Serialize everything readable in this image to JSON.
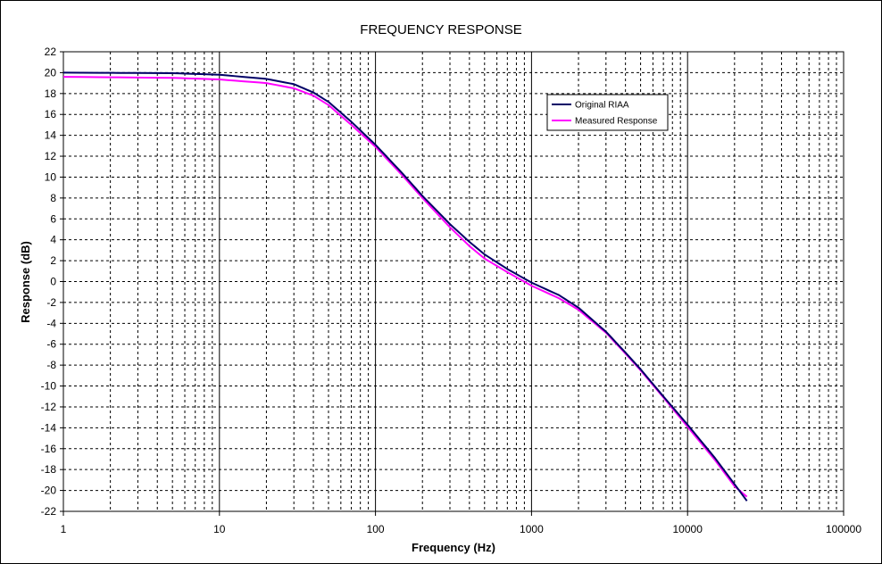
{
  "chart_data": {
    "type": "line",
    "title": "FREQUENCY RESPONSE",
    "xlabel": "Frequency (Hz)",
    "ylabel": "Response (dB)",
    "x_scale": "log",
    "xlim": [
      1,
      100000
    ],
    "ylim": [
      -22,
      22
    ],
    "x_ticks": [
      1,
      10,
      100,
      1000,
      10000,
      100000
    ],
    "x_tick_labels": [
      "1",
      "10",
      "100",
      "1000",
      "10000",
      "100000"
    ],
    "y_ticks": [
      22,
      20,
      18,
      16,
      14,
      12,
      10,
      8,
      6,
      4,
      2,
      0,
      -2,
      -4,
      -6,
      -8,
      -10,
      -12,
      -14,
      -16,
      -18,
      -20,
      -22
    ],
    "y_tick_labels": [
      "22",
      "20",
      "18",
      "16",
      "14",
      "12",
      "10",
      "8",
      "6",
      "4",
      "2",
      "0",
      "-2",
      "-4",
      "-6",
      "-8",
      "-10",
      "-12",
      "-14",
      "-16",
      "-18",
      "-20",
      "-22"
    ],
    "grid": true,
    "legend_position": "top-right",
    "series": [
      {
        "name": "Original RIAA",
        "color": "#000066",
        "x": [
          1,
          5,
          10,
          20,
          30,
          40,
          50,
          70,
          100,
          150,
          200,
          300,
          400,
          500,
          700,
          1000,
          1500,
          2000,
          3000,
          4000,
          5000,
          7000,
          10000,
          15000,
          20000,
          24000
        ],
        "y": [
          20.0,
          19.95,
          19.8,
          19.4,
          18.9,
          18.1,
          17.2,
          15.3,
          13.1,
          10.3,
          8.2,
          5.5,
          3.8,
          2.6,
          1.2,
          -0.1,
          -1.3,
          -2.5,
          -4.8,
          -6.8,
          -8.4,
          -11.0,
          -13.7,
          -16.9,
          -19.4,
          -21.0
        ]
      },
      {
        "name": "Measured Response",
        "color": "#ff00ff",
        "x": [
          1,
          5,
          10,
          20,
          30,
          40,
          50,
          70,
          100,
          150,
          200,
          300,
          400,
          500,
          700,
          1000,
          1500,
          2000,
          3000,
          4000,
          5000,
          7000,
          10000,
          15000,
          20000,
          24000
        ],
        "y": [
          19.6,
          19.5,
          19.35,
          19.0,
          18.5,
          17.8,
          16.9,
          15.0,
          12.9,
          10.1,
          8.0,
          5.2,
          3.4,
          2.2,
          0.9,
          -0.4,
          -1.6,
          -2.7,
          -4.9,
          -6.9,
          -8.5,
          -11.1,
          -13.9,
          -17.1,
          -19.6,
          -20.6
        ]
      }
    ]
  }
}
